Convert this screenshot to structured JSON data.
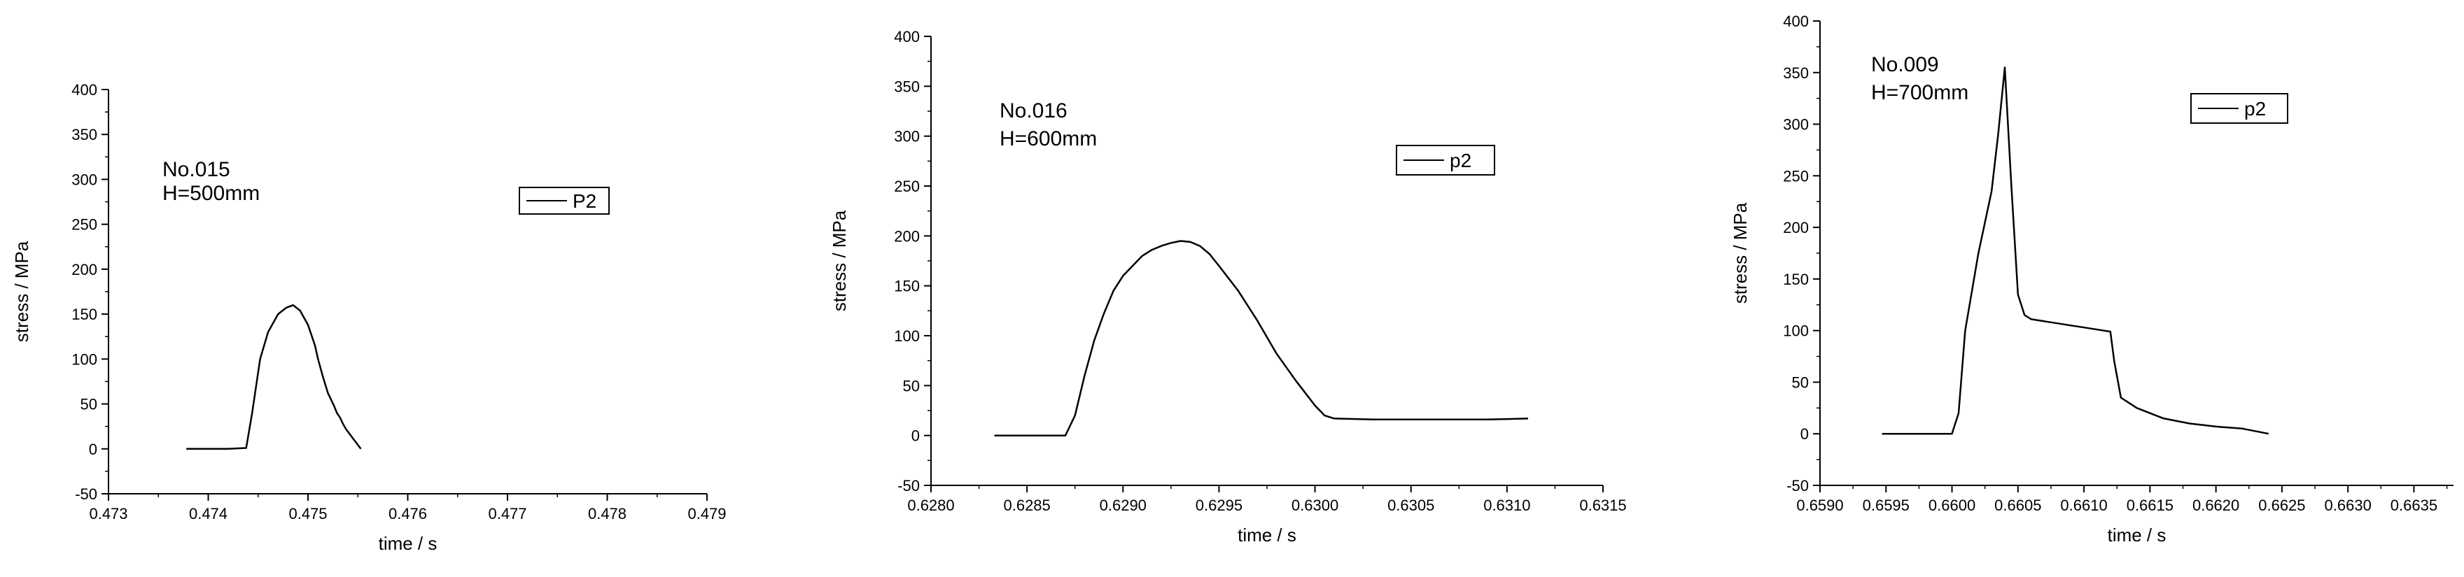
{
  "chart_data": [
    {
      "type": "line",
      "annotation": [
        "No.015",
        "H=500mm"
      ],
      "xlabel": "time / s",
      "ylabel": "stress / MPa",
      "xlim": [
        0.473,
        0.479
      ],
      "ylim": [
        -50,
        400
      ],
      "xticks": [
        0.473,
        0.474,
        0.475,
        0.476,
        0.477,
        0.478,
        0.479
      ],
      "xtick_labels": [
        "0.473",
        "0.474",
        "0.475",
        "0.476",
        "0.477",
        "0.478",
        "0.479"
      ],
      "yticks": [
        -50,
        0,
        50,
        100,
        150,
        200,
        250,
        300,
        350,
        400
      ],
      "ytick_labels": [
        "-50",
        "0",
        "50",
        "100",
        "150",
        "200",
        "250",
        "300",
        "350",
        "400"
      ],
      "legend": "P2",
      "series": [
        {
          "name": "P2",
          "x": [
            0.47378,
            0.4742,
            0.47438,
            0.47444,
            0.47452,
            0.4746,
            0.4747,
            0.47478,
            0.47485,
            0.47492,
            0.475,
            0.47507,
            0.4751,
            0.47515,
            0.4752,
            0.47526,
            0.47529,
            0.47532,
            0.47535,
            0.47538,
            0.47553
          ],
          "y": [
            0,
            0,
            1,
            40,
            100,
            130,
            150,
            157,
            160,
            154,
            138,
            115,
            100,
            80,
            62,
            48,
            40,
            35,
            28,
            22,
            0
          ]
        }
      ]
    },
    {
      "type": "line",
      "annotation": [
        "No.016",
        "H=600mm"
      ],
      "xlabel": "time / s",
      "ylabel": "stress / MPa",
      "xlim": [
        0.628,
        0.6315
      ],
      "ylim": [
        -50,
        400
      ],
      "xticks": [
        0.628,
        0.6285,
        0.629,
        0.6295,
        0.63,
        0.6305,
        0.631,
        0.6315
      ],
      "xtick_labels": [
        "0.6280",
        "0.6285",
        "0.6290",
        "0.6295",
        "0.6300",
        "0.6305",
        "0.6310",
        "0.6315"
      ],
      "yticks": [
        -50,
        0,
        50,
        100,
        150,
        200,
        250,
        300,
        350,
        400
      ],
      "ytick_labels": [
        "-50",
        "0",
        "50",
        "100",
        "150",
        "200",
        "250",
        "300",
        "350",
        "400"
      ],
      "legend": "p2",
      "series": [
        {
          "name": "p2",
          "x": [
            0.62833,
            0.6287,
            0.62875,
            0.6288,
            0.62885,
            0.6289,
            0.62895,
            0.629,
            0.62905,
            0.6291,
            0.62915,
            0.6292,
            0.62925,
            0.6293,
            0.62935,
            0.6294,
            0.62945,
            0.6295,
            0.6296,
            0.6297,
            0.6298,
            0.6299,
            0.63,
            0.63005,
            0.6301,
            0.6303,
            0.6306,
            0.6309,
            0.63111
          ],
          "y": [
            0,
            0,
            20,
            60,
            95,
            122,
            145,
            160,
            170,
            180,
            186,
            190,
            193,
            195,
            194,
            190,
            182,
            170,
            145,
            115,
            82,
            55,
            30,
            20,
            17,
            16,
            16,
            16,
            17
          ]
        }
      ]
    },
    {
      "type": "line",
      "annotation": [
        "No.009",
        "H=700mm"
      ],
      "xlabel": "time / s",
      "ylabel": "stress / MPa",
      "xlim": [
        0.659,
        0.6638
      ],
      "ylim": [
        -50,
        400
      ],
      "xticks": [
        0.659,
        0.6595,
        0.66,
        0.6605,
        0.661,
        0.6615,
        0.662,
        0.6625,
        0.663,
        0.6635
      ],
      "xtick_labels": [
        "0.6590",
        "0.6595",
        "0.6600",
        "0.6605",
        "0.6610",
        "0.6615",
        "0.6620",
        "0.6625",
        "0.6630",
        "0.6635"
      ],
      "yticks": [
        -50,
        0,
        50,
        100,
        150,
        200,
        250,
        300,
        350,
        400
      ],
      "ytick_labels": [
        "-50",
        "0",
        "50",
        "100",
        "150",
        "200",
        "250",
        "300",
        "350",
        "400"
      ],
      "legend": "p2",
      "series": [
        {
          "name": "p2",
          "x": [
            0.65947,
            0.66,
            0.66005,
            0.6601,
            0.6602,
            0.6603,
            0.66035,
            0.6604,
            0.66045,
            0.6605,
            0.66055,
            0.6606,
            0.6607,
            0.6608,
            0.6609,
            0.661,
            0.6611,
            0.6612,
            0.66123,
            0.66128,
            0.6614,
            0.6616,
            0.6618,
            0.662,
            0.6622,
            0.6624
          ],
          "y": [
            0,
            0,
            20,
            100,
            175,
            235,
            290,
            355,
            240,
            135,
            115,
            111,
            109,
            107,
            105,
            103,
            101,
            99,
            70,
            35,
            25,
            15,
            10,
            7,
            5,
            0
          ]
        }
      ]
    }
  ]
}
